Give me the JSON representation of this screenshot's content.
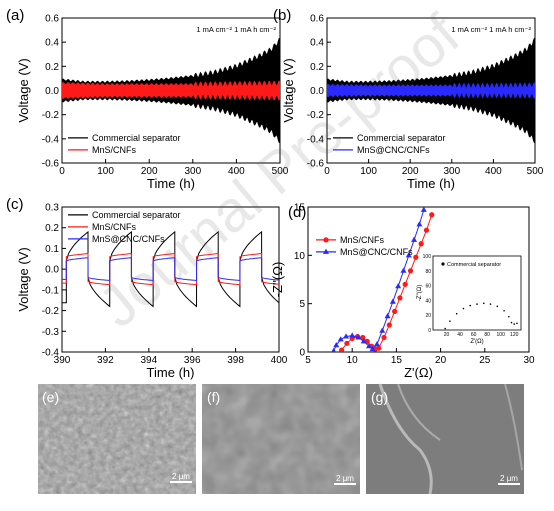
{
  "figure": {
    "watermark": "Journal Pre-proof",
    "colors": {
      "black": "#000000",
      "red": "#ff1a1a",
      "blue": "#2a2aff",
      "grey_bg": "#8a8a8a"
    }
  },
  "chart_data": [
    {
      "panel": "(a)",
      "type": "line",
      "annotation": "1 mA cm⁻²  1 mA h cm⁻²",
      "xlabel": "Time (h)",
      "ylabel": "Voltage (V)",
      "xlim": [
        0,
        500
      ],
      "ylim": [
        -0.6,
        0.6
      ],
      "xticks": [
        0,
        100,
        200,
        300,
        400,
        500
      ],
      "yticks": [
        -0.6,
        -0.4,
        -0.2,
        0.0,
        0.2,
        0.4,
        0.6
      ],
      "legend": "bottom-left",
      "series": [
        {
          "name": "Commercial separator",
          "color": "#000000",
          "x": [
            0,
            50,
            100,
            150,
            200,
            250,
            300,
            350,
            400,
            450,
            480,
            500
          ],
          "amplitude": [
            0.09,
            0.07,
            0.07,
            0.075,
            0.085,
            0.1,
            0.12,
            0.15,
            0.2,
            0.28,
            0.34,
            0.42
          ]
        },
        {
          "name": "MnS/CNFs",
          "color": "#ff1a1a",
          "x": [
            0,
            100,
            200,
            300,
            400,
            500
          ],
          "amplitude": [
            0.06,
            0.05,
            0.05,
            0.05,
            0.055,
            0.06
          ]
        }
      ]
    },
    {
      "panel": "(b)",
      "type": "line",
      "annotation": "1 mA cm⁻²  1 mA h cm⁻²",
      "xlabel": "Time (h)",
      "ylabel": "Voltage (V)",
      "xlim": [
        0,
        500
      ],
      "ylim": [
        -0.6,
        0.6
      ],
      "xticks": [
        0,
        100,
        200,
        300,
        400,
        500
      ],
      "yticks": [
        -0.6,
        -0.4,
        -0.2,
        0.0,
        0.2,
        0.4,
        0.6
      ],
      "legend": "bottom-left",
      "series": [
        {
          "name": "Commercial separator",
          "color": "#000000",
          "x": [
            0,
            50,
            100,
            150,
            200,
            250,
            300,
            350,
            400,
            450,
            480,
            500
          ],
          "amplitude": [
            0.09,
            0.07,
            0.07,
            0.075,
            0.085,
            0.1,
            0.12,
            0.15,
            0.2,
            0.28,
            0.34,
            0.42
          ]
        },
        {
          "name": "MnS@CNC/CNFs",
          "color": "#2a2aff",
          "x": [
            0,
            100,
            200,
            300,
            400,
            500
          ],
          "amplitude": [
            0.045,
            0.04,
            0.04,
            0.04,
            0.04,
            0.045
          ]
        }
      ]
    },
    {
      "panel": "(c)",
      "type": "line",
      "xlabel": "Time (h)",
      "ylabel": "Voltage (V)",
      "xlim": [
        390,
        400
      ],
      "ylim": [
        -0.4,
        0.3
      ],
      "xticks": [
        390,
        392,
        394,
        396,
        398,
        400
      ],
      "yticks": [
        -0.4,
        -0.3,
        -0.2,
        -0.1,
        0.0,
        0.1,
        0.2,
        0.3
      ],
      "legend": "top-left",
      "cycle_starts": [
        390.2,
        392.2,
        394.2,
        396.2,
        398.2
      ],
      "half_cycle_h": 1.0,
      "series": [
        {
          "name": "Commercial separator",
          "color": "#000000",
          "plateau": 0.18,
          "min": 0.04
        },
        {
          "name": "MnS/CNFs",
          "color": "#ff1a1a",
          "plateau": 0.075,
          "min": 0.06
        },
        {
          "name": "MnS@CNC/CNFs",
          "color": "#2a2aff",
          "plateau": 0.055,
          "min": 0.04
        }
      ]
    },
    {
      "panel": "(d)",
      "type": "scatter",
      "xlabel": "Z'(Ω)",
      "ylabel": "-Z''(Ω)",
      "xlim": [
        5,
        30
      ],
      "ylim": [
        0,
        15
      ],
      "xticks": [
        5,
        10,
        15,
        20,
        25,
        30
      ],
      "yticks": [
        0,
        5,
        10,
        15
      ],
      "legend": "top-left",
      "series": [
        {
          "name": "MnS/CNFs",
          "color": "#ff1a1a",
          "marker": "circle",
          "x": [
            8.8,
            9.4,
            10.0,
            10.6,
            11.2,
            11.7,
            12.2,
            12.6,
            13.0,
            13.6,
            14.2,
            14.8,
            15.4,
            16.0,
            16.6,
            17.2,
            17.8,
            18.4,
            19.0
          ],
          "y": [
            0.2,
            0.9,
            1.4,
            1.6,
            1.5,
            1.1,
            0.6,
            0.3,
            0.4,
            1.5,
            2.8,
            4.2,
            5.6,
            7.0,
            8.4,
            9.8,
            11.2,
            12.6,
            14.2
          ]
        },
        {
          "name": "MnS@CNC/CNFs",
          "color": "#2a2aff",
          "marker": "triangle",
          "x": [
            7.9,
            8.2,
            8.7,
            9.3,
            10.0,
            10.7,
            11.3,
            11.9,
            12.3,
            12.8,
            13.4,
            14.0,
            14.6,
            15.2,
            15.8,
            16.4,
            17.0,
            17.6,
            18.1
          ],
          "y": [
            0.1,
            0.7,
            1.3,
            1.6,
            1.7,
            1.5,
            1.1,
            0.6,
            0.3,
            0.8,
            2.2,
            3.7,
            5.2,
            6.8,
            8.4,
            10.0,
            11.6,
            13.2,
            14.7
          ]
        }
      ],
      "inset": {
        "xlabel": "Z'(Ω)",
        "ylabel": "-Z''(Ω)",
        "xlim": [
          0,
          130
        ],
        "ylim": [
          0,
          100
        ],
        "xticks": [
          20,
          40,
          60,
          80,
          100,
          120
        ],
        "yticks": [
          0,
          20,
          40,
          60,
          80,
          100
        ],
        "series": [
          {
            "name": "Commercial separator",
            "color": "#000000",
            "x": [
              18,
              25,
              35,
              45,
              55,
              65,
              75,
              85,
              95,
              105,
              112,
              116,
              120,
              124
            ],
            "y": [
              2,
              12,
              22,
              29,
              33,
              35,
              36,
              35,
              32,
              26,
              18,
              10,
              8,
              9
            ]
          }
        ]
      }
    }
  ],
  "sem_panels": [
    {
      "label": "(e)",
      "scale": "2 μm"
    },
    {
      "label": "(f)",
      "scale": "2 μm"
    },
    {
      "label": "(g)",
      "scale": "2 μm"
    }
  ]
}
